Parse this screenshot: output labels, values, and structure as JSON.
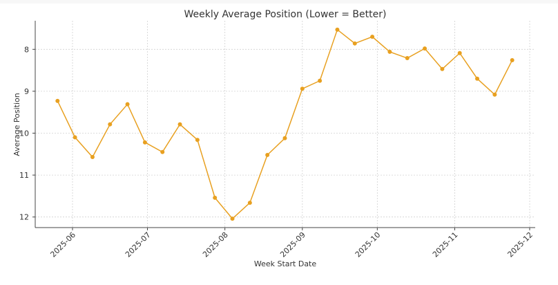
{
  "chart_data": {
    "type": "line",
    "title": "Weekly Average Position (Lower = Better)",
    "xlabel": "Week Start Date",
    "ylabel": "Average Position",
    "y_inverted": true,
    "ylim": [
      12.25,
      7.35
    ],
    "yticks": [
      8,
      9,
      10,
      11,
      12
    ],
    "xticks": [
      "2025-06",
      "2025-07",
      "2025-08",
      "2025-09",
      "2025-10",
      "2025-11",
      "2025-12"
    ],
    "grid": true,
    "legend": null,
    "series": [
      {
        "name": "Average Position",
        "color": "#e8a020",
        "x": [
          "2025-05-26",
          "2025-06-02",
          "2025-06-09",
          "2025-06-16",
          "2025-06-23",
          "2025-06-30",
          "2025-07-07",
          "2025-07-14",
          "2025-07-21",
          "2025-07-28",
          "2025-08-04",
          "2025-08-11",
          "2025-08-18",
          "2025-08-25",
          "2025-09-01",
          "2025-09-08",
          "2025-09-15",
          "2025-09-22",
          "2025-09-29",
          "2025-10-06",
          "2025-10-13",
          "2025-10-20",
          "2025-10-27",
          "2025-11-03",
          "2025-11-10",
          "2025-11-17",
          "2025-11-24"
        ],
        "values": [
          9.23,
          10.1,
          10.57,
          9.79,
          9.31,
          10.22,
          10.45,
          9.79,
          10.16,
          11.54,
          12.04,
          11.66,
          10.52,
          10.12,
          8.94,
          8.75,
          7.53,
          7.86,
          7.7,
          8.06,
          8.21,
          7.98,
          8.47,
          8.09,
          8.7,
          9.08,
          8.26
        ]
      }
    ]
  }
}
